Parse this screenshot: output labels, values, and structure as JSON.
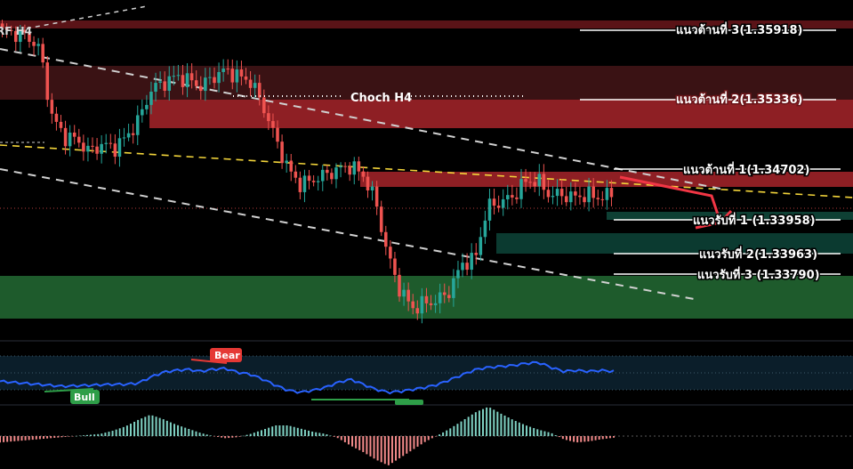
{
  "symbol": "RF H4",
  "chart_data": {
    "type": "candlestick",
    "timeframe": "H4",
    "price_levels": [
      {
        "key": "r3",
        "label": "แนวต้านที่ 3(1.35918)",
        "kind": "resistance"
      },
      {
        "key": "r2",
        "label": "แนวต้านที่ 2(1.35336)",
        "kind": "resistance"
      },
      {
        "key": "r1",
        "label": "แนวต้านที่ 1(1.34702)",
        "kind": "resistance"
      },
      {
        "key": "s1",
        "label": "แนวรับที่ 1 (1.33958)",
        "kind": "support"
      },
      {
        "key": "s2",
        "label": "แนวรับที่ 2(1.33963)",
        "kind": "support"
      },
      {
        "key": "s3",
        "label": "แนวรับที่ 3 (1.33790)",
        "kind": "support"
      }
    ],
    "annotations": {
      "choch": "Choch H4",
      "bear_divergence": "Bear",
      "bull_divergence": "Bull"
    },
    "close_path": [
      1.3576,
      1.3574,
      1.3572,
      1.3562,
      1.3508,
      1.3492,
      1.349,
      1.348,
      1.3486,
      1.3483,
      1.3492,
      1.3506,
      1.353,
      1.3535,
      1.354,
      1.3537,
      1.3532,
      1.354,
      1.3545,
      1.354,
      1.3536,
      1.3516,
      1.349,
      1.3466,
      1.3454,
      1.3458,
      1.3462,
      1.3466,
      1.3469,
      1.3462,
      1.3442,
      1.3398,
      1.337,
      1.3356,
      1.336,
      1.3362,
      1.337,
      1.3392,
      1.3394,
      1.3436,
      1.344,
      1.3444,
      1.3456,
      1.3458,
      1.3446,
      1.3446,
      1.3444,
      1.3446,
      1.3444,
      1.3446
    ],
    "oscillator": [
      0.42,
      0.4,
      0.38,
      0.36,
      0.34,
      0.32,
      0.33,
      0.34,
      0.35,
      0.36,
      0.36,
      0.38,
      0.5,
      0.6,
      0.64,
      0.66,
      0.62,
      0.66,
      0.68,
      0.6,
      0.56,
      0.46,
      0.34,
      0.24,
      0.2,
      0.24,
      0.3,
      0.4,
      0.46,
      0.36,
      0.26,
      0.2,
      0.22,
      0.26,
      0.3,
      0.36,
      0.46,
      0.56,
      0.66,
      0.7,
      0.72,
      0.74,
      0.78,
      0.8,
      0.7,
      0.62,
      0.64,
      0.62,
      0.64,
      0.62
    ],
    "histogram": [
      -0.12,
      -0.1,
      -0.08,
      -0.06,
      -0.04,
      -0.02,
      0.0,
      0.02,
      0.04,
      0.1,
      0.18,
      0.3,
      0.4,
      0.32,
      0.22,
      0.14,
      0.06,
      0.0,
      -0.04,
      -0.02,
      0.04,
      0.12,
      0.2,
      0.2,
      0.14,
      0.08,
      0.04,
      -0.04,
      -0.18,
      -0.3,
      -0.44,
      -0.55,
      -0.4,
      -0.25,
      -0.1,
      0.02,
      0.15,
      0.3,
      0.45,
      0.55,
      0.42,
      0.3,
      0.2,
      0.12,
      0.06,
      -0.06,
      -0.12,
      -0.1,
      -0.06,
      -0.03
    ],
    "colors": {
      "bull_candle": "#26a69a",
      "bear_candle": "#ef5350",
      "resistance_zone": "#8e1f24",
      "resistance_zone_dark": "#3a1214",
      "support_zone": "#1e5b2c",
      "support_zone_teal": "#0b3a30",
      "trend_yellow": "#f2d43a",
      "trend_white": "#cfcfcf",
      "oscillator_line": "#2962ff",
      "arrow": "#f23645",
      "bear_tag": "#e53935",
      "bull_tag": "#2e9e48"
    }
  }
}
